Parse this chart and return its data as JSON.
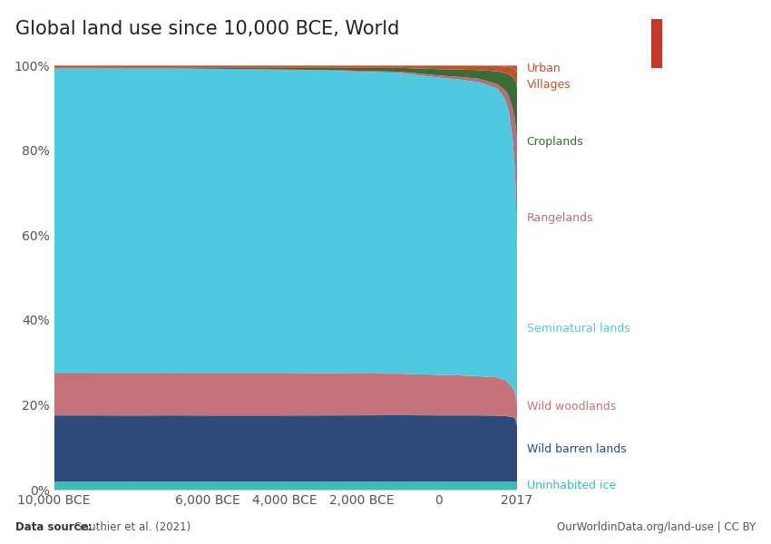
{
  "title": "Global land use since 10,000 BCE, World",
  "data_source_bold": "Data source:",
  "data_source_rest": " Gauthier et al. (2021)",
  "url": "OurWorldinData.org/land-use | CC BY",
  "x_values": [
    -10000,
    -9000,
    -8000,
    -7000,
    -6000,
    -5000,
    -4000,
    -3000,
    -2000,
    -1000,
    0,
    500,
    1000,
    1500,
    1700,
    1800,
    1900,
    1950,
    1980,
    2000,
    2017
  ],
  "x_tick_labels": [
    "10,000 BCE",
    "6,000 BCE",
    "4,000 BCE",
    "2,000 BCE",
    "0",
    "2017"
  ],
  "x_tick_positions": [
    -10000,
    -6000,
    -4000,
    -2000,
    0,
    2017
  ],
  "series_order": [
    "Uninhabited ice",
    "Wild barren lands",
    "Wild woodlands",
    "Seminatural lands",
    "Rangelands",
    "Croplands",
    "Villages",
    "Urban"
  ],
  "series": {
    "Uninhabited ice": {
      "color": "#3dbdb5",
      "label_color": "#3dbdb5",
      "values": [
        2.0,
        2.0,
        2.0,
        2.0,
        2.0,
        2.0,
        2.0,
        2.0,
        2.0,
        2.0,
        2.0,
        2.0,
        2.0,
        2.0,
        2.0,
        2.0,
        2.0,
        2.0,
        2.0,
        2.0,
        2.0
      ]
    },
    "Wild barren lands": {
      "color": "#2d4a7a",
      "label_color": "#2d4a7a",
      "values": [
        15.5,
        15.5,
        15.5,
        15.5,
        15.5,
        15.5,
        15.5,
        15.5,
        15.5,
        15.5,
        15.5,
        15.5,
        15.5,
        15.5,
        15.5,
        15.5,
        15.5,
        15.3,
        15.0,
        14.0,
        12.5
      ]
    },
    "Wild woodlands": {
      "color": "#c5737a",
      "label_color": "#c5737a",
      "values": [
        10.0,
        10.0,
        10.0,
        10.0,
        10.0,
        10.0,
        10.0,
        9.9,
        9.8,
        9.7,
        9.5,
        9.4,
        9.2,
        9.0,
        8.5,
        8.0,
        7.0,
        6.5,
        6.0,
        5.5,
        5.0
      ]
    },
    "Seminatural lands": {
      "color": "#4ec9df",
      "label_color": "#4ec9df",
      "values": [
        71.5,
        71.5,
        71.5,
        71.4,
        71.4,
        71.3,
        71.2,
        71.0,
        70.7,
        70.3,
        69.7,
        69.4,
        69.0,
        68.0,
        66.5,
        65.0,
        60.0,
        55.0,
        50.0,
        45.0,
        28.0
      ]
    },
    "Rangelands": {
      "color": "#b07080",
      "label_color": "#b07080",
      "values": [
        0.0,
        0.0,
        0.0,
        0.0,
        0.0,
        0.0,
        0.0,
        0.1,
        0.2,
        0.3,
        0.5,
        0.6,
        0.8,
        1.0,
        2.0,
        3.5,
        7.0,
        11.0,
        15.0,
        20.0,
        30.0
      ]
    },
    "Croplands": {
      "color": "#3d6b35",
      "label_color": "#3d6b35",
      "values": [
        0.0,
        0.0,
        0.1,
        0.1,
        0.2,
        0.3,
        0.4,
        0.5,
        0.7,
        0.9,
        1.5,
        1.7,
        2.0,
        3.0,
        4.0,
        5.0,
        7.5,
        9.0,
        10.5,
        12.0,
        13.0
      ]
    },
    "Villages": {
      "color": "#c0522a",
      "label_color": "#c0522a",
      "values": [
        0.5,
        0.5,
        0.5,
        0.5,
        0.5,
        0.5,
        0.5,
        0.5,
        0.5,
        0.5,
        0.8,
        0.9,
        1.0,
        1.2,
        1.5,
        1.8,
        2.2,
        2.5,
        2.8,
        3.0,
        3.5
      ]
    },
    "Urban": {
      "color": "#c0522a",
      "label_color": "#c0522a",
      "values": [
        0.0,
        0.0,
        0.0,
        0.0,
        0.0,
        0.0,
        0.0,
        0.0,
        0.0,
        0.0,
        0.0,
        0.0,
        0.0,
        0.1,
        0.2,
        0.3,
        0.5,
        0.7,
        1.0,
        1.2,
        1.5
      ]
    }
  },
  "label_y_positions": {
    "Uninhabited ice": 1.0,
    "Wild barren lands": 9.5,
    "Wild woodlands": 19.5,
    "Seminatural lands": 38.0,
    "Rangelands": 64.0,
    "Croplands": 82.0,
    "Villages": 95.5,
    "Urban": 99.3
  },
  "logo_bg": "#1a3a5c",
  "logo_red": "#c0392b"
}
